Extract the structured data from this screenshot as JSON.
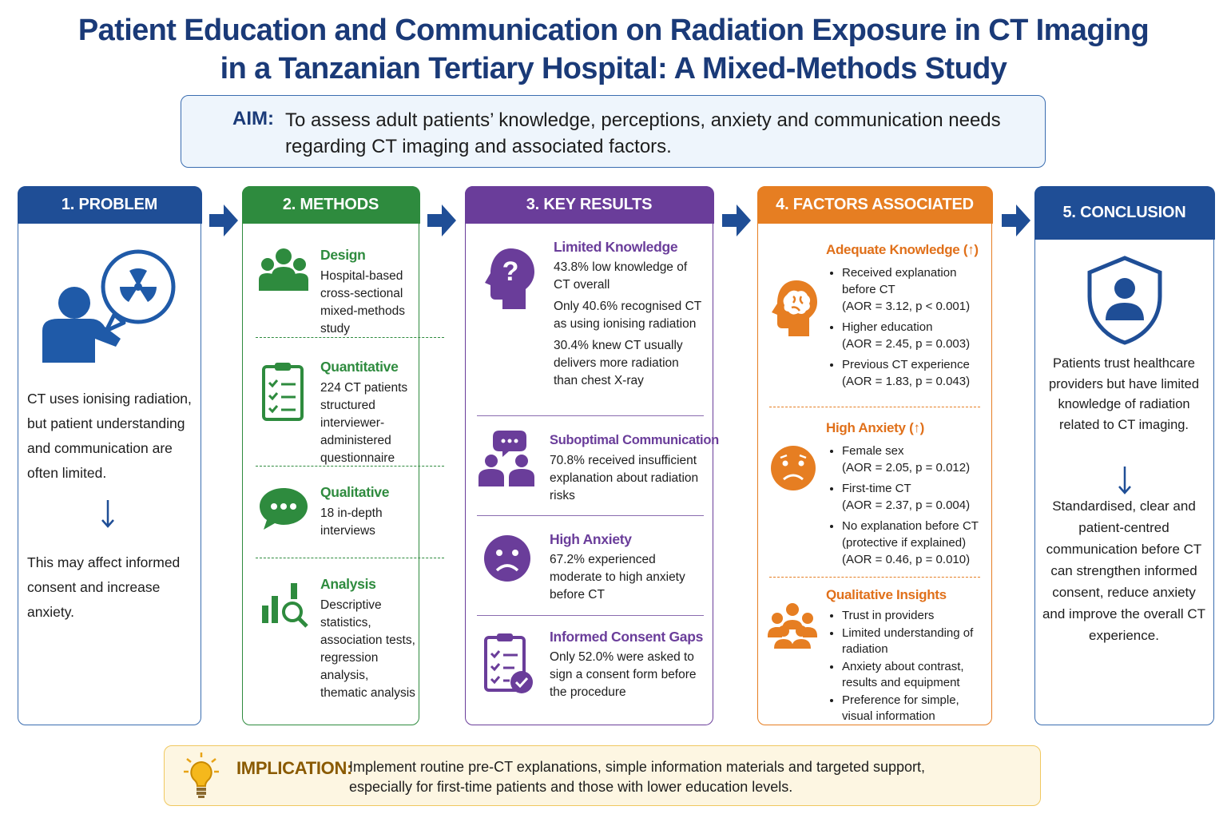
{
  "title": {
    "lines": [
      "Patient Education and Communication on Radiation Exposure in CT Imaging",
      "in a Tanzanian Tertiary Hospital: A Mixed-Methods Study"
    ]
  },
  "aim": {
    "label": "AIM:",
    "text": "To assess adult patients’ knowledge, perceptions, anxiety and communication needs regarding CT imaging and associated factors."
  },
  "panels": [
    {
      "heading": "1. PROBLEM",
      "paragraphs": [
        "CT uses ionising radiation, but patient understanding and communication are often limited.",
        "This may affect informed consent and increase anxiety."
      ]
    },
    {
      "heading": "2. METHODS",
      "items": [
        {
          "title": "Design",
          "text": "Hospital-based cross-sectional mixed-methods study"
        },
        {
          "title": "Quantitative",
          "text": "224 CT patients structured interviewer-administered questionnaire"
        },
        {
          "title": "Qualitative",
          "text": "18 in-depth interviews"
        },
        {
          "title": "Analysis",
          "text": "Descriptive statistics, association tests, regression analysis, thematic analysis"
        }
      ]
    },
    {
      "heading": "3. KEY RESULTS",
      "items": [
        {
          "title": "Limited Knowledge",
          "paragraphs": [
            "43.8% low knowledge of CT overall",
            "Only 40.6% recognised CT as using ionising radiation",
            "30.4% knew CT usually delivers more radiation than chest X-ray"
          ]
        },
        {
          "title": "Suboptimal Communication",
          "paragraphs": [
            "70.8% received insufficient explanation about radiation risks"
          ]
        },
        {
          "title": "High Anxiety",
          "paragraphs": [
            "67.2% experienced moderate to high anxiety before CT"
          ]
        },
        {
          "title": "Informed Consent Gaps",
          "paragraphs": [
            "Only 52.0% were asked to sign a consent form before the procedure"
          ]
        }
      ]
    },
    {
      "heading": "4. FACTORS ASSOCIATED",
      "groups": [
        {
          "title": "Adequate Knowledge (↑)",
          "bullets": [
            [
              "Received explanation before CT",
              "(AOR = 3.12, p < 0.001)"
            ],
            [
              "Higher education",
              "(AOR = 2.45, p = 0.003)"
            ],
            [
              "Previous CT experience",
              "(AOR = 1.83, p = 0.043)"
            ]
          ]
        },
        {
          "title": "High Anxiety (↑)",
          "bullets": [
            [
              "Female sex",
              "(AOR = 2.05, p = 0.012)"
            ],
            [
              "First-time CT",
              "(AOR = 2.37, p = 0.004)"
            ],
            [
              "No explanation before CT",
              "(protective if explained)",
              "(AOR = 0.46, p = 0.010)"
            ]
          ]
        },
        {
          "title": "Qualitative Insights",
          "bullets": [
            [
              "Trust in providers"
            ],
            [
              "Limited understanding of radiation"
            ],
            [
              "Anxiety about contrast, results and equipment"
            ],
            [
              "Preference for simple, visual information"
            ]
          ]
        }
      ]
    },
    {
      "heading": "5. CONCLUSION",
      "paragraphs": [
        "Patients trust healthcare providers but have limited knowledge of radiation related to CT imaging.",
        "Standardised, clear and patient-centred communication before CT can strengthen informed consent, reduce anxiety and improve the overall CT experience."
      ]
    }
  ],
  "implication": {
    "label": "IMPLICATION:",
    "text": "Implement routine pre-CT explanations, simple information materials and targeted support, especially for first-time patients and those with lower education levels."
  }
}
